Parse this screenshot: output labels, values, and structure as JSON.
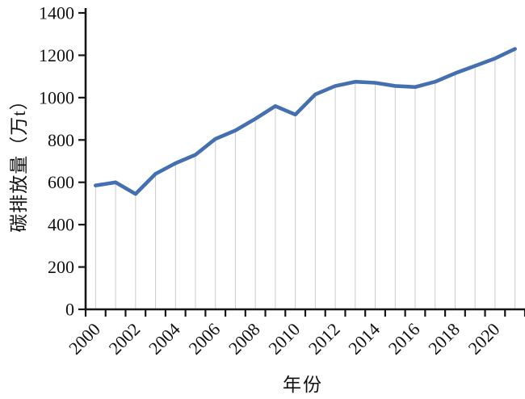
{
  "chart_data": {
    "type": "line",
    "xlabel": "年份",
    "ylabel": "碳排放量（万t）",
    "x": [
      2000,
      2001,
      2002,
      2003,
      2004,
      2005,
      2006,
      2007,
      2008,
      2009,
      2010,
      2011,
      2012,
      2013,
      2014,
      2015,
      2016,
      2017,
      2018,
      2019,
      2020,
      2021
    ],
    "series": [
      {
        "name": "碳排放量",
        "values": [
          585,
          600,
          545,
          640,
          690,
          730,
          805,
          845,
          900,
          960,
          920,
          1015,
          1055,
          1075,
          1070,
          1055,
          1050,
          1075,
          1115,
          1150,
          1185,
          1230
        ]
      }
    ],
    "ylim": [
      0,
      1400
    ],
    "yticks": [
      0,
      200,
      400,
      600,
      800,
      1000,
      1200,
      1400
    ],
    "ytick_step": 200,
    "xtick_labels": [
      "2000",
      "2002",
      "2004",
      "2006",
      "2008",
      "2010",
      "2012",
      "2014",
      "2016",
      "2018",
      "2020"
    ],
    "xtick_label_interval": 2,
    "xtick_label_rotation": -45,
    "grid": false,
    "drop_lines": true,
    "legend_position": "none",
    "colors": {
      "line": "#4470b2",
      "drop_line": "#cbcbcb",
      "axis": "#161616",
      "text": "#111111",
      "background": "#ffffff"
    }
  }
}
